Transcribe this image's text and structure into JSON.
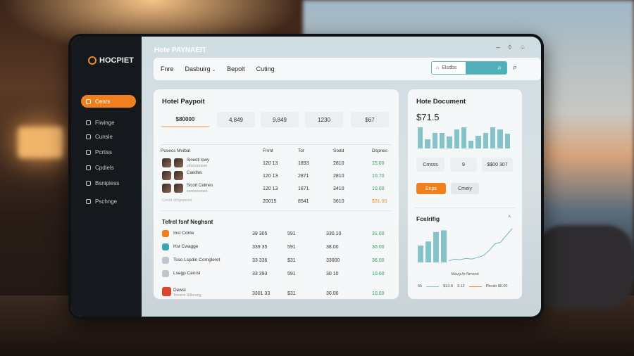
{
  "app": {
    "logo": "HOCPIET",
    "title": "Hote PAYNAEIT",
    "top_icons": [
      "minimize-icon",
      "shield-icon",
      "bell-icon"
    ]
  },
  "sidebar": {
    "items": [
      {
        "label": "Cenrs",
        "active": true
      },
      {
        "label": "Fiwinge"
      },
      {
        "label": "Cunsle"
      },
      {
        "label": "Pcrtiss"
      },
      {
        "label": "Cpdiels"
      },
      {
        "label": "Bsnipiess"
      },
      {
        "label": "Pschnge"
      }
    ]
  },
  "navbar": {
    "items": [
      "Fnre",
      "Dasbuirg",
      "Bepolt",
      "Cuting"
    ],
    "search_placeholder": "Elsdbs"
  },
  "payment": {
    "title": "Hotel Paypoit",
    "stats": [
      "$80000",
      "4,849",
      "9,849",
      "1230",
      "$67"
    ],
    "table_headers": [
      "Pusecs Mvibal",
      "Fnmt",
      "Tor",
      "Sodd",
      "Dspnes"
    ],
    "rows": [
      {
        "name": "Sineotl lowy",
        "sub": "vifstronnsse",
        "c1": "120 13",
        "c2": "1893",
        "c3": "2810",
        "c4": "15.00",
        "color": "green"
      },
      {
        "name": "Caedlus",
        "sub": "",
        "c1": "120 13",
        "c2": "2871",
        "c3": "2810",
        "c4": "10.70",
        "color": "green"
      },
      {
        "name": "Sicort Celmes",
        "sub": "swmsseswe",
        "c1": "120 13",
        "c2": "1871",
        "c3": "3410",
        "c4": "10.00",
        "color": "green"
      },
      {
        "name": "Centir drhgspeed",
        "sub": "",
        "c1": "20015",
        "c2": "8541",
        "c3": "3610",
        "c4": "$31.00",
        "color": "orange"
      }
    ]
  },
  "report": {
    "title": "Tefrel fsnf Neghsnt",
    "rows": [
      {
        "name": "Inst Cdnle",
        "icon": "orange-app-icon",
        "c1": "39 305",
        "c2": "591",
        "c3": "330.10",
        "c4": "31.00"
      },
      {
        "name": "Hst Cwagge",
        "icon": "teal-app-icon",
        "c1": "339 35",
        "c2": "591",
        "c3": "38.00",
        "c4": "30.00"
      },
      {
        "name": "Tsso Lspdin Corngleret",
        "icon": "doc-icon",
        "c1": "33 336",
        "c2": "$31",
        "c3": "33000",
        "c4": "36.00"
      },
      {
        "name": "Lsegp Cenrsl",
        "icon": "doc-icon",
        "c1": "33 393",
        "c2": "591",
        "c3": "30 10",
        "c4": "10.00"
      },
      {
        "name": "Dewsl",
        "sub": "Tsnsrsl Sitlsrsng",
        "icon": "red-app-icon",
        "c1": "3301 33",
        "c2": "$31",
        "c3": "30.00",
        "c4": "10.00"
      }
    ]
  },
  "document": {
    "title": "Hote Document",
    "amount": "$71.5",
    "bar_levels": [
      0.95,
      0.4,
      0.68,
      0.68,
      0.52,
      0.85,
      0.95,
      0.35,
      0.55,
      0.68,
      0.95,
      0.85,
      0.65
    ],
    "chips": [
      "Cmsss",
      "9",
      "$$00 307"
    ],
    "primary_button": "Enps",
    "secondary_button": "Cmeiy"
  },
  "forecast": {
    "title": "Fcelrifig",
    "bar_levels": [
      0.5,
      0.62,
      0.9,
      0.95
    ],
    "line_levels": [
      0.05,
      0.1,
      0.08,
      0.12,
      0.1,
      0.15,
      0.2,
      0.35,
      0.55,
      0.6,
      0.8,
      1.0
    ],
    "xlabel": "Mavg Ar Nmsnd",
    "legend": [
      {
        "left": "55",
        "label": "$13.8",
        "color": "#86c3c8"
      },
      {
        "left": "3.12",
        "label": "Pbosb  $5.00",
        "color": "#ee8a2a"
      }
    ]
  },
  "colors": {
    "accent": "#f0801e",
    "teal": "#4fb0ba",
    "sidebar": "#15181c"
  }
}
